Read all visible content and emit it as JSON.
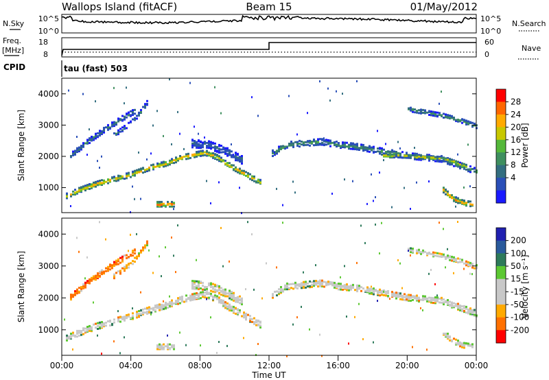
{
  "header": {
    "station": "Wallops Island (fitACF)",
    "beam": "Beam 15",
    "date": "01/May/2012"
  },
  "strips": {
    "nsky_label": "N.Sky",
    "nsky_ticks": [
      "10^5",
      "10^0"
    ],
    "nsearch_label": "N.Search",
    "nsearch_ticks": [
      "10^5",
      "10^0"
    ],
    "freq_label": "Freq.",
    "freq_unit": "[MHz]",
    "freq_ticks": [
      "18",
      "8"
    ],
    "nave_label": "Nave",
    "nave_ticks": [
      "60",
      "0"
    ],
    "cpid_label": "CPID",
    "cpid_value": "tau (fast) 503"
  },
  "x_ticks": [
    "00:00",
    "04:00",
    "08:00",
    "12:00",
    "16:00",
    "20:00",
    "00:00"
  ],
  "x_title": "Time UT",
  "colors": {
    "power_scale": [
      "#1a1aff",
      "#2a4fb8",
      "#336e80",
      "#3f8f5f",
      "#55b83a",
      "#c8c800",
      "#ffaa00",
      "#ff6600",
      "#ff0000"
    ],
    "velocity_scale": [
      "#2020b0",
      "#2a5a9c",
      "#2d7a5a",
      "#5cc832",
      "#c8c8c8",
      "#c8c8c8",
      "#ffaa00",
      "#ff7000",
      "#ff0000"
    ]
  },
  "chart_data": [
    {
      "type": "heatmap",
      "title": "Power",
      "ylabel": "Slant Range [km]",
      "xlabel": "Time UT",
      "colorbar_label": "Power [dB]",
      "colorbar_ticks": [
        "28",
        "24",
        "20",
        "16",
        "12",
        "8",
        "4"
      ],
      "x_range_hours": [
        0,
        24
      ],
      "ylim": [
        200,
        4500
      ],
      "yticks": [
        "4000",
        "3000",
        "2000",
        "1000"
      ],
      "ridges": [
        {
          "x": [
            0.2,
            1,
            2,
            3,
            4,
            5,
            6,
            7,
            7.8,
            8.3,
            9,
            9.5,
            10.5,
            11.5
          ],
          "y": [
            750,
            950,
            1150,
            1300,
            1450,
            1650,
            1800,
            2000,
            2100,
            2150,
            2000,
            1800,
            1500,
            1200
          ],
          "width_km": 150,
          "power_db": 24
        },
        {
          "x": [
            12.1,
            13,
            14,
            15,
            16,
            17,
            18,
            19,
            20,
            21,
            22,
            23,
            24
          ],
          "y": [
            2100,
            2400,
            2450,
            2500,
            2400,
            2350,
            2250,
            2150,
            2050,
            2000,
            1950,
            1750,
            1550
          ],
          "width_km": 180,
          "power_db": 14
        },
        {
          "x": [
            18.5,
            19.5,
            20.5,
            21.5,
            22.5,
            23.5
          ],
          "y": [
            2050,
            2050,
            2020,
            1980,
            1900,
            1700
          ],
          "width_km": 100,
          "power_db": 22
        },
        {
          "x": [
            0.5,
            1.5,
            2.5,
            3.5,
            4.3
          ],
          "y": [
            2050,
            2500,
            2900,
            3250,
            3500
          ],
          "width_km": 150,
          "power_db": 12
        },
        {
          "x": [
            3,
            4,
            4.5,
            5
          ],
          "y": [
            2700,
            3100,
            3400,
            3800
          ],
          "width_km": 120,
          "power_db": 12
        },
        {
          "x": [
            20,
            21,
            22,
            23,
            24
          ],
          "y": [
            3550,
            3450,
            3350,
            3200,
            3000
          ],
          "width_km": 130,
          "power_db": 14
        },
        {
          "x": [
            22,
            22.6,
            23.2,
            23.8
          ],
          "y": [
            1000,
            700,
            550,
            500
          ],
          "width_km": 150,
          "power_db": 26
        },
        {
          "x": [
            5.5,
            6.5
          ],
          "y": [
            500,
            500
          ],
          "width_km": 150,
          "power_db": 28
        },
        {
          "x": [
            7.5,
            8.5,
            9.5,
            10.5
          ],
          "y": [
            2450,
            2400,
            2200,
            1900
          ],
          "width_km": 250,
          "power_db": 10
        }
      ]
    },
    {
      "type": "heatmap",
      "title": "Velocity",
      "ylabel": "Slant Range [km]",
      "xlabel": "Time UT",
      "colorbar_label": "Velocity [m s⁻¹]",
      "colorbar_ticks": [
        "200",
        "100",
        "50",
        "15",
        "-15",
        "-50",
        "-100",
        "-200"
      ],
      "x_range_hours": [
        0,
        24
      ],
      "ylim": [
        200,
        4500
      ],
      "yticks": [
        "4000",
        "3000",
        "2000",
        "1000"
      ],
      "ridges": [
        {
          "x": [
            0.2,
            1,
            2,
            3,
            4,
            5,
            6,
            7,
            7.8,
            8.3,
            9,
            9.5,
            10.5,
            11.5
          ],
          "y": [
            750,
            950,
            1150,
            1300,
            1450,
            1650,
            1800,
            2000,
            2100,
            2150,
            2000,
            1800,
            1500,
            1200
          ],
          "width_km": 200,
          "velocity": 0
        },
        {
          "x": [
            12.1,
            13,
            14,
            15,
            16,
            17,
            18,
            19,
            20,
            21,
            22,
            23,
            24
          ],
          "y": [
            2100,
            2400,
            2450,
            2500,
            2400,
            2350,
            2250,
            2150,
            2050,
            2000,
            1950,
            1750,
            1550
          ],
          "width_km": 200,
          "velocity": 0
        },
        {
          "x": [
            0.5,
            1.5,
            2.5,
            3.5,
            4.3
          ],
          "y": [
            2050,
            2500,
            2900,
            3250,
            3500
          ],
          "width_km": 150,
          "velocity": -60
        },
        {
          "x": [
            3,
            4,
            4.5,
            5
          ],
          "y": [
            2700,
            3100,
            3400,
            3800
          ],
          "width_km": 120,
          "velocity": -40
        },
        {
          "x": [
            20,
            21,
            22,
            23,
            24
          ],
          "y": [
            3550,
            3450,
            3350,
            3200,
            3000
          ],
          "width_km": 130,
          "velocity": 0
        },
        {
          "x": [
            22,
            22.6,
            23.2,
            23.8
          ],
          "y": [
            1000,
            700,
            550,
            500
          ],
          "width_km": 150,
          "velocity": 0
        },
        {
          "x": [
            5.5,
            6.5
          ],
          "y": [
            500,
            500
          ],
          "width_km": 150,
          "velocity": 0
        },
        {
          "x": [
            7.5,
            8.5,
            9.5,
            10.5
          ],
          "y": [
            2450,
            2400,
            2200,
            1900
          ],
          "width_km": 250,
          "velocity": 0
        }
      ]
    }
  ]
}
